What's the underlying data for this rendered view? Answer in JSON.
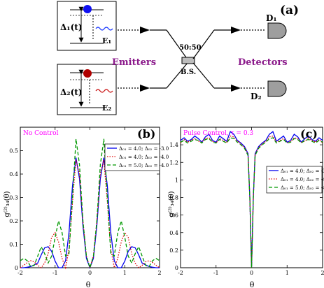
{
  "schematic": {
    "panel_label": "(a)",
    "emitter1": {
      "delta_label": "Δ₁(t)",
      "emitter_label": "E₁",
      "dot_color": "#1010f0",
      "wave_color": "#1e3cff"
    },
    "emitter2": {
      "delta_label": "Δ₂(t)",
      "emitter_label": "E₂",
      "dot_color": "#b00000",
      "wave_color": "#cc1a1a"
    },
    "emitters_label": "Emitters",
    "detectors_label": "Detectors",
    "splitter_ratio": "50:50",
    "splitter_label": "B.S.",
    "detector1": "D₁",
    "detector2": "D₂",
    "label_color": "#8b1a8b"
  },
  "chart_data": [
    {
      "type": "line",
      "panel_label": "(b)",
      "title": "No Control",
      "title_color": "#ff00ff",
      "xlabel": "θ",
      "ylabel": "g⁽²⁾₃₄(θ)",
      "xlim": [
        -2,
        2
      ],
      "ylim": [
        0,
        0.6
      ],
      "xticks": [
        "-2",
        "-1",
        "0",
        "1",
        "2"
      ],
      "yticks": [
        "0",
        "0.1",
        "0.2",
        "0.3",
        "0.4",
        "0.5"
      ],
      "legend_position": "upper-right",
      "series": [
        {
          "name": "Δ₀₁ = 4.0; Δ₀₂ = -3.0",
          "color": "#0000ee",
          "style": "solid",
          "x": [
            -2,
            -1.9,
            -1.8,
            -1.7,
            -1.6,
            -1.5,
            -1.4,
            -1.3,
            -1.2,
            -1.1,
            -1.0,
            -0.9,
            -0.8,
            -0.7,
            -0.6,
            -0.5,
            -0.4,
            -0.3,
            -0.2,
            -0.1,
            0,
            0.1,
            0.2,
            0.3,
            0.4,
            0.5,
            0.6,
            0.7,
            0.8,
            0.9,
            1.0,
            1.1,
            1.2,
            1.3,
            1.4,
            1.5,
            1.6,
            1.7,
            1.8,
            1.9,
            2
          ],
          "y": [
            0.0,
            0.0,
            0.002,
            0.005,
            0.012,
            0.02,
            0.055,
            0.085,
            0.09,
            0.07,
            0.028,
            0.0,
            0.0,
            0.03,
            0.15,
            0.35,
            0.47,
            0.38,
            0.18,
            0.04,
            0.0,
            0.04,
            0.18,
            0.38,
            0.47,
            0.35,
            0.15,
            0.03,
            0.0,
            0.0,
            0.028,
            0.07,
            0.09,
            0.085,
            0.055,
            0.02,
            0.012,
            0.005,
            0.002,
            0.0,
            0.0
          ]
        },
        {
          "name": "Δ₀₁ = 4.0; Δ₀₂ = -4.0",
          "color": "#dd0000",
          "style": "dotted",
          "x": [
            -2,
            -1.9,
            -1.8,
            -1.7,
            -1.6,
            -1.5,
            -1.4,
            -1.3,
            -1.2,
            -1.1,
            -1.0,
            -0.9,
            -0.8,
            -0.7,
            -0.6,
            -0.5,
            -0.4,
            -0.3,
            -0.2,
            -0.1,
            0,
            0.1,
            0.2,
            0.3,
            0.4,
            0.5,
            0.6,
            0.7,
            0.8,
            0.9,
            1.0,
            1.1,
            1.2,
            1.3,
            1.4,
            1.5,
            1.6,
            1.7,
            1.8,
            1.9,
            2
          ],
          "y": [
            0.0,
            0.01,
            0.022,
            0.03,
            0.025,
            0.01,
            0.0,
            0.02,
            0.06,
            0.13,
            0.15,
            0.11,
            0.04,
            0.0,
            0.08,
            0.28,
            0.46,
            0.4,
            0.2,
            0.05,
            0.0,
            0.05,
            0.2,
            0.4,
            0.46,
            0.28,
            0.08,
            0.0,
            0.04,
            0.11,
            0.15,
            0.13,
            0.06,
            0.02,
            0.0,
            0.01,
            0.025,
            0.03,
            0.022,
            0.01,
            0.0
          ]
        },
        {
          "name": "Δ₀₁ = 5.0; Δ₀₂ = -4.0",
          "color": "#009900",
          "style": "dashed",
          "x": [
            -2,
            -1.9,
            -1.8,
            -1.7,
            -1.6,
            -1.5,
            -1.4,
            -1.3,
            -1.2,
            -1.1,
            -1.0,
            -0.9,
            -0.8,
            -0.7,
            -0.6,
            -0.5,
            -0.4,
            -0.3,
            -0.2,
            -0.1,
            0,
            0.1,
            0.2,
            0.3,
            0.4,
            0.5,
            0.6,
            0.7,
            0.8,
            0.9,
            1.0,
            1.1,
            1.2,
            1.3,
            1.4,
            1.5,
            1.6,
            1.7,
            1.8,
            1.9,
            2
          ],
          "y": [
            0.03,
            0.04,
            0.03,
            0.005,
            0.01,
            0.05,
            0.09,
            0.06,
            0.02,
            0.05,
            0.13,
            0.2,
            0.15,
            0.05,
            0.06,
            0.3,
            0.55,
            0.44,
            0.2,
            0.05,
            0.0,
            0.05,
            0.2,
            0.44,
            0.55,
            0.3,
            0.06,
            0.05,
            0.15,
            0.2,
            0.13,
            0.05,
            0.02,
            0.06,
            0.09,
            0.05,
            0.01,
            0.005,
            0.03,
            0.04,
            0.03
          ]
        }
      ]
    },
    {
      "type": "line",
      "panel_label": "(c)",
      "title": "Pulse Control, τ = 0.3",
      "title_color": "#ff00ff",
      "xlabel": "θ",
      "ylabel": "g⁽²⁾₃₄(θ)",
      "xlim": [
        -2,
        2
      ],
      "ylim": [
        0,
        1.6
      ],
      "xticks": [
        "-2",
        "-1",
        "0",
        "1",
        "2"
      ],
      "yticks": [
        "0",
        "0.2",
        "0.4",
        "0.6",
        "0.8",
        "1",
        "1.2",
        "1.4"
      ],
      "legend_position": "center-right",
      "series": [
        {
          "name": "Δ₀₁ = 4.0; Δ₀₂ = -3.0",
          "color": "#0000ee",
          "style": "solid",
          "x": [
            -2,
            -1.9,
            -1.8,
            -1.7,
            -1.6,
            -1.5,
            -1.4,
            -1.3,
            -1.2,
            -1.1,
            -1.0,
            -0.9,
            -0.8,
            -0.7,
            -0.6,
            -0.5,
            -0.4,
            -0.3,
            -0.2,
            -0.1,
            -0.05,
            0,
            0.05,
            0.1,
            0.2,
            0.3,
            0.4,
            0.5,
            0.6,
            0.7,
            0.8,
            0.9,
            1.0,
            1.1,
            1.2,
            1.3,
            1.4,
            1.5,
            1.6,
            1.7,
            1.8,
            1.9,
            2
          ],
          "y": [
            1.45,
            1.48,
            1.44,
            1.46,
            1.5,
            1.47,
            1.43,
            1.49,
            1.52,
            1.45,
            1.43,
            1.5,
            1.47,
            1.44,
            1.55,
            1.52,
            1.45,
            1.42,
            1.38,
            1.3,
            0.8,
            0.0,
            0.8,
            1.3,
            1.38,
            1.42,
            1.45,
            1.52,
            1.55,
            1.44,
            1.47,
            1.5,
            1.43,
            1.45,
            1.52,
            1.49,
            1.43,
            1.47,
            1.5,
            1.46,
            1.44,
            1.48,
            1.45
          ]
        },
        {
          "name": "Δ₀₁ = 4.0; Δ₀₂ = -4.0",
          "color": "#dd0000",
          "style": "dotted",
          "x": [
            -2,
            -1.9,
            -1.8,
            -1.7,
            -1.6,
            -1.5,
            -1.4,
            -1.3,
            -1.2,
            -1.1,
            -1.0,
            -0.9,
            -0.8,
            -0.7,
            -0.6,
            -0.5,
            -0.4,
            -0.3,
            -0.2,
            -0.1,
            -0.05,
            0,
            0.05,
            0.1,
            0.2,
            0.3,
            0.4,
            0.5,
            0.6,
            0.7,
            0.8,
            0.9,
            1.0,
            1.1,
            1.2,
            1.3,
            1.4,
            1.5,
            1.6,
            1.7,
            1.8,
            1.9,
            2
          ],
          "y": [
            1.42,
            1.46,
            1.43,
            1.45,
            1.47,
            1.44,
            1.43,
            1.47,
            1.48,
            1.44,
            1.42,
            1.47,
            1.45,
            1.43,
            1.5,
            1.49,
            1.44,
            1.41,
            1.37,
            1.29,
            0.8,
            0.0,
            0.8,
            1.29,
            1.37,
            1.41,
            1.44,
            1.49,
            1.5,
            1.43,
            1.45,
            1.47,
            1.42,
            1.44,
            1.48,
            1.47,
            1.43,
            1.44,
            1.47,
            1.45,
            1.43,
            1.46,
            1.42
          ]
        },
        {
          "name": "Δ₀₁ = 5.0; Δ₀₂ = -4.0",
          "color": "#009900",
          "style": "dashed",
          "x": [
            -2,
            -1.9,
            -1.8,
            -1.7,
            -1.6,
            -1.5,
            -1.4,
            -1.3,
            -1.2,
            -1.1,
            -1.0,
            -0.9,
            -0.8,
            -0.7,
            -0.6,
            -0.5,
            -0.4,
            -0.3,
            -0.2,
            -0.1,
            -0.05,
            0,
            0.05,
            0.1,
            0.2,
            0.3,
            0.4,
            0.5,
            0.6,
            0.7,
            0.8,
            0.9,
            1.0,
            1.1,
            1.2,
            1.3,
            1.4,
            1.5,
            1.6,
            1.7,
            1.8,
            1.9,
            2
          ],
          "y": [
            1.43,
            1.45,
            1.42,
            1.44,
            1.46,
            1.45,
            1.42,
            1.46,
            1.47,
            1.43,
            1.42,
            1.46,
            1.44,
            1.42,
            1.48,
            1.47,
            1.43,
            1.4,
            1.36,
            1.28,
            0.8,
            0.0,
            0.8,
            1.28,
            1.36,
            1.4,
            1.43,
            1.47,
            1.48,
            1.42,
            1.44,
            1.46,
            1.42,
            1.43,
            1.47,
            1.46,
            1.42,
            1.45,
            1.46,
            1.44,
            1.42,
            1.45,
            1.43
          ]
        }
      ]
    }
  ]
}
